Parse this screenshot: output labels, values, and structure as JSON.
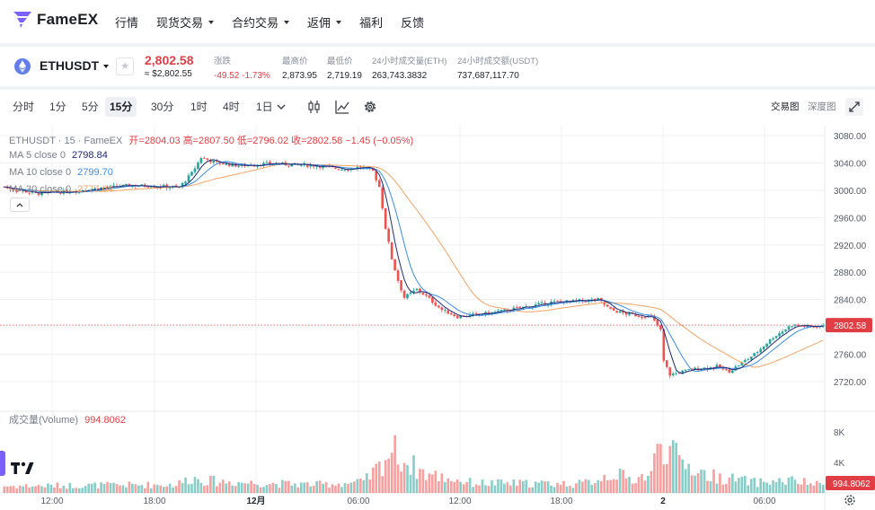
{
  "nav": {
    "brand": "FameEX",
    "items": [
      {
        "label": "行情",
        "caret": false
      },
      {
        "label": "现货交易",
        "caret": true
      },
      {
        "label": "合约交易",
        "caret": true
      },
      {
        "label": "返佣",
        "caret": true
      },
      {
        "label": "福利",
        "caret": false
      },
      {
        "label": "反馈",
        "caret": false
      }
    ]
  },
  "ticker": {
    "symbol": "ETHUSDT",
    "last_price": "2,802.58",
    "last_usd": "≈ $2,802.55",
    "stats": [
      {
        "label": "涨跌",
        "value": "-49.52 -1.73%",
        "red": true
      },
      {
        "label": "最高价",
        "value": "2,873.95",
        "red": false
      },
      {
        "label": "最低价",
        "value": "2,719.19",
        "red": false
      },
      {
        "label": "24小时成交量(ETH)",
        "value": "263,743.3832",
        "red": false
      },
      {
        "label": "24小时成交额(USDT)",
        "value": "737,687,117.70",
        "red": false
      }
    ]
  },
  "toolbar": {
    "timeframes": [
      "分时",
      "1分",
      "5分",
      "15分",
      "30分",
      "1时",
      "4时",
      "1日"
    ],
    "active_timeframe": "15分",
    "chart_tabs": [
      "交易图",
      "深度图"
    ],
    "active_chart_tab": "交易图"
  },
  "legend": {
    "title": "ETHUSDT · 15 · FameEX",
    "ohlc": "开=2804.03  高=2807.50  低=2796.02  收=2802.58  −1.45 (−0.05%)",
    "ma5_label": "MA 5 close 0",
    "ma5_value": "2798.84",
    "ma10_label": "MA 10 close 0",
    "ma10_value": "2799.70",
    "ma30_label": "MA 30 close 0",
    "ma30_value": "2777.04",
    "volume_label": "成交量(Volume)",
    "volume_value": "994.8062"
  },
  "colors": {
    "up": "#26a69a",
    "down": "#ef5350",
    "ma5": "#1e2a78",
    "ma10": "#3a8ee6",
    "ma30": "#f4a261",
    "red": "#e03e44"
  },
  "chart_data": {
    "type": "candlestick",
    "price_axis": {
      "ticks": [
        "3080.00",
        "3040.00",
        "3000.00",
        "2960.00",
        "2920.00",
        "2880.00",
        "2840.00",
        "2800.00",
        "2760.00",
        "2720.00"
      ],
      "range": [
        2700,
        3095
      ]
    },
    "time_axis": {
      "ticks": [
        "12:00",
        "18:00",
        "12月",
        "06:00",
        "12:00",
        "18:00",
        "2",
        "06:00"
      ]
    },
    "last_price_label": "2802.58",
    "volume_axis": {
      "ticks": [
        "8K",
        "4K"
      ]
    },
    "last_volume_label": "994.8062",
    "close_anchors": [
      [
        0,
        3005
      ],
      [
        10,
        2995
      ],
      [
        20,
        2998
      ],
      [
        28,
        3002
      ],
      [
        40,
        3007
      ],
      [
        50,
        3006
      ],
      [
        56,
        3004
      ],
      [
        60,
        3025
      ],
      [
        63,
        3048
      ],
      [
        68,
        3040
      ],
      [
        75,
        3036
      ],
      [
        85,
        3039
      ],
      [
        100,
        3036
      ],
      [
        108,
        3031
      ],
      [
        114,
        3034
      ],
      [
        118,
        3028
      ],
      [
        120,
        3005
      ],
      [
        122,
        2945
      ],
      [
        124,
        2900
      ],
      [
        126,
        2868
      ],
      [
        128,
        2843
      ],
      [
        132,
        2855
      ],
      [
        135,
        2845
      ],
      [
        140,
        2825
      ],
      [
        145,
        2815
      ],
      [
        155,
        2820
      ],
      [
        165,
        2828
      ],
      [
        175,
        2836
      ],
      [
        185,
        2838
      ],
      [
        190,
        2840
      ],
      [
        194,
        2825
      ],
      [
        200,
        2818
      ],
      [
        207,
        2815
      ],
      [
        210,
        2795
      ],
      [
        211,
        2750
      ],
      [
        213,
        2730
      ],
      [
        220,
        2738
      ],
      [
        228,
        2742
      ],
      [
        232,
        2735
      ],
      [
        240,
        2760
      ],
      [
        246,
        2785
      ],
      [
        252,
        2803
      ],
      [
        258,
        2800
      ],
      [
        262,
        2802
      ]
    ],
    "volume_anchors": [
      [
        0,
        0.9
      ],
      [
        55,
        1.1
      ],
      [
        60,
        2.0
      ],
      [
        65,
        1.6
      ],
      [
        80,
        1.3
      ],
      [
        100,
        1.1
      ],
      [
        115,
        1.4
      ],
      [
        120,
        3.4
      ],
      [
        124,
        5.8
      ],
      [
        128,
        4.2
      ],
      [
        135,
        2.5
      ],
      [
        150,
        1.3
      ],
      [
        185,
        1.2
      ],
      [
        195,
        2.6
      ],
      [
        200,
        1.8
      ],
      [
        207,
        2.4
      ],
      [
        210,
        7.4
      ],
      [
        212,
        5.8
      ],
      [
        216,
        4.2
      ],
      [
        225,
        2.3
      ],
      [
        240,
        1.4
      ],
      [
        252,
        1.6
      ],
      [
        262,
        0.99
      ]
    ],
    "bars": 263
  }
}
